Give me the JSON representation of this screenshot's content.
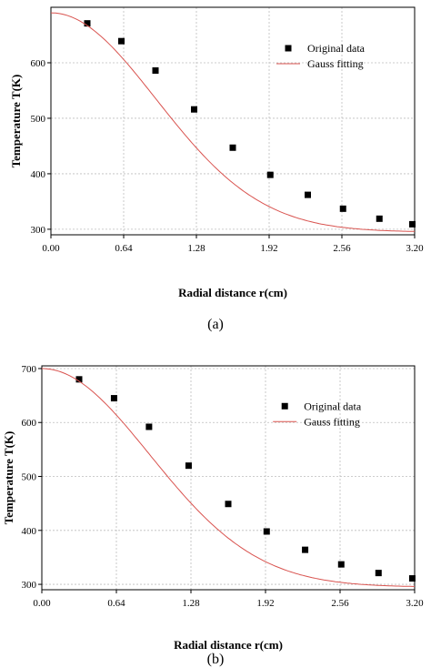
{
  "chart_data": [
    {
      "type": "scatter",
      "caption": "(a)",
      "xlabel": "Radial distance r(cm)",
      "ylabel": "Temperature T(K)",
      "xlim": [
        0,
        3.2
      ],
      "ylim": [
        290,
        700
      ],
      "xticks": [
        "0.00",
        "0.64",
        "1.28",
        "1.92",
        "2.56",
        "3.20"
      ],
      "yticks": [
        "300",
        "400",
        "500",
        "600"
      ],
      "grid": true,
      "legend_position": "top-right",
      "series": [
        {
          "name": "Original data",
          "kind": "points",
          "color": "#000000",
          "x": [
            0.32,
            0.62,
            0.92,
            1.26,
            1.6,
            1.93,
            2.26,
            2.57,
            2.89,
            3.18
          ],
          "y": [
            671,
            639,
            586,
            516,
            447,
            398,
            362,
            337,
            319,
            309
          ]
        },
        {
          "name": "Gauss fitting",
          "kind": "line",
          "color": "#d9534f",
          "model": {
            "y0": 295,
            "A": 395,
            "w": 1.85
          }
        }
      ]
    },
    {
      "type": "scatter",
      "caption": "(b)",
      "xlabel": "Radial distance r(cm)",
      "ylabel": "Temperature T(K)",
      "xlim": [
        0,
        3.2
      ],
      "ylim": [
        290,
        705
      ],
      "xticks": [
        "0.00",
        "0.64",
        "1.28",
        "1.92",
        "2.56",
        "3.20"
      ],
      "yticks": [
        "300",
        "400",
        "500",
        "600",
        "700"
      ],
      "grid": true,
      "legend_position": "top-right",
      "series": [
        {
          "name": "Original data",
          "kind": "points",
          "color": "#000000",
          "x": [
            0.32,
            0.62,
            0.92,
            1.26,
            1.6,
            1.93,
            2.26,
            2.57,
            2.89,
            3.18
          ],
          "y": [
            680,
            645,
            592,
            520,
            449,
            398,
            364,
            337,
            321,
            311
          ]
        },
        {
          "name": "Gauss fitting",
          "kind": "line",
          "color": "#d9534f",
          "model": {
            "y0": 295,
            "A": 405,
            "w": 1.85
          }
        }
      ]
    }
  ]
}
